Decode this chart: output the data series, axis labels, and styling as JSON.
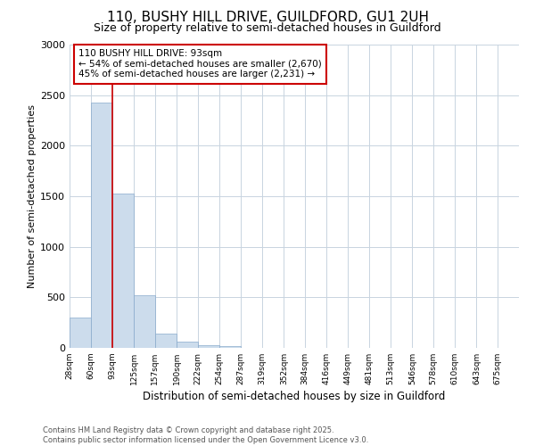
{
  "title1": "110, BUSHY HILL DRIVE, GUILDFORD, GU1 2UH",
  "title2": "Size of property relative to semi-detached houses in Guildford",
  "xlabel": "Distribution of semi-detached houses by size in Guildford",
  "ylabel": "Number of semi-detached properties",
  "bins": [
    28,
    60,
    93,
    125,
    157,
    190,
    222,
    254,
    287,
    319,
    352,
    384,
    416,
    449,
    481,
    513,
    546,
    578,
    610,
    643,
    675
  ],
  "values": [
    300,
    2430,
    1530,
    520,
    140,
    60,
    30,
    20,
    0,
    0,
    0,
    0,
    0,
    0,
    0,
    0,
    0,
    0,
    0,
    0
  ],
  "bar_color": "#ccdcec",
  "bar_edge_color": "#88aacc",
  "vline_x": 93,
  "vline_color": "#cc0000",
  "annotation_title": "110 BUSHY HILL DRIVE: 93sqm",
  "annotation_line2": "← 54% of semi-detached houses are smaller (2,670)",
  "annotation_line3": "45% of semi-detached houses are larger (2,231) →",
  "annotation_box_color": "#cc0000",
  "ylim": [
    0,
    3000
  ],
  "yticks": [
    0,
    500,
    1000,
    1500,
    2000,
    2500,
    3000
  ],
  "footer1": "Contains HM Land Registry data © Crown copyright and database right 2025.",
  "footer2": "Contains public sector information licensed under the Open Government Licence v3.0.",
  "bg_color": "#ffffff",
  "grid_color": "#c8d4e0"
}
